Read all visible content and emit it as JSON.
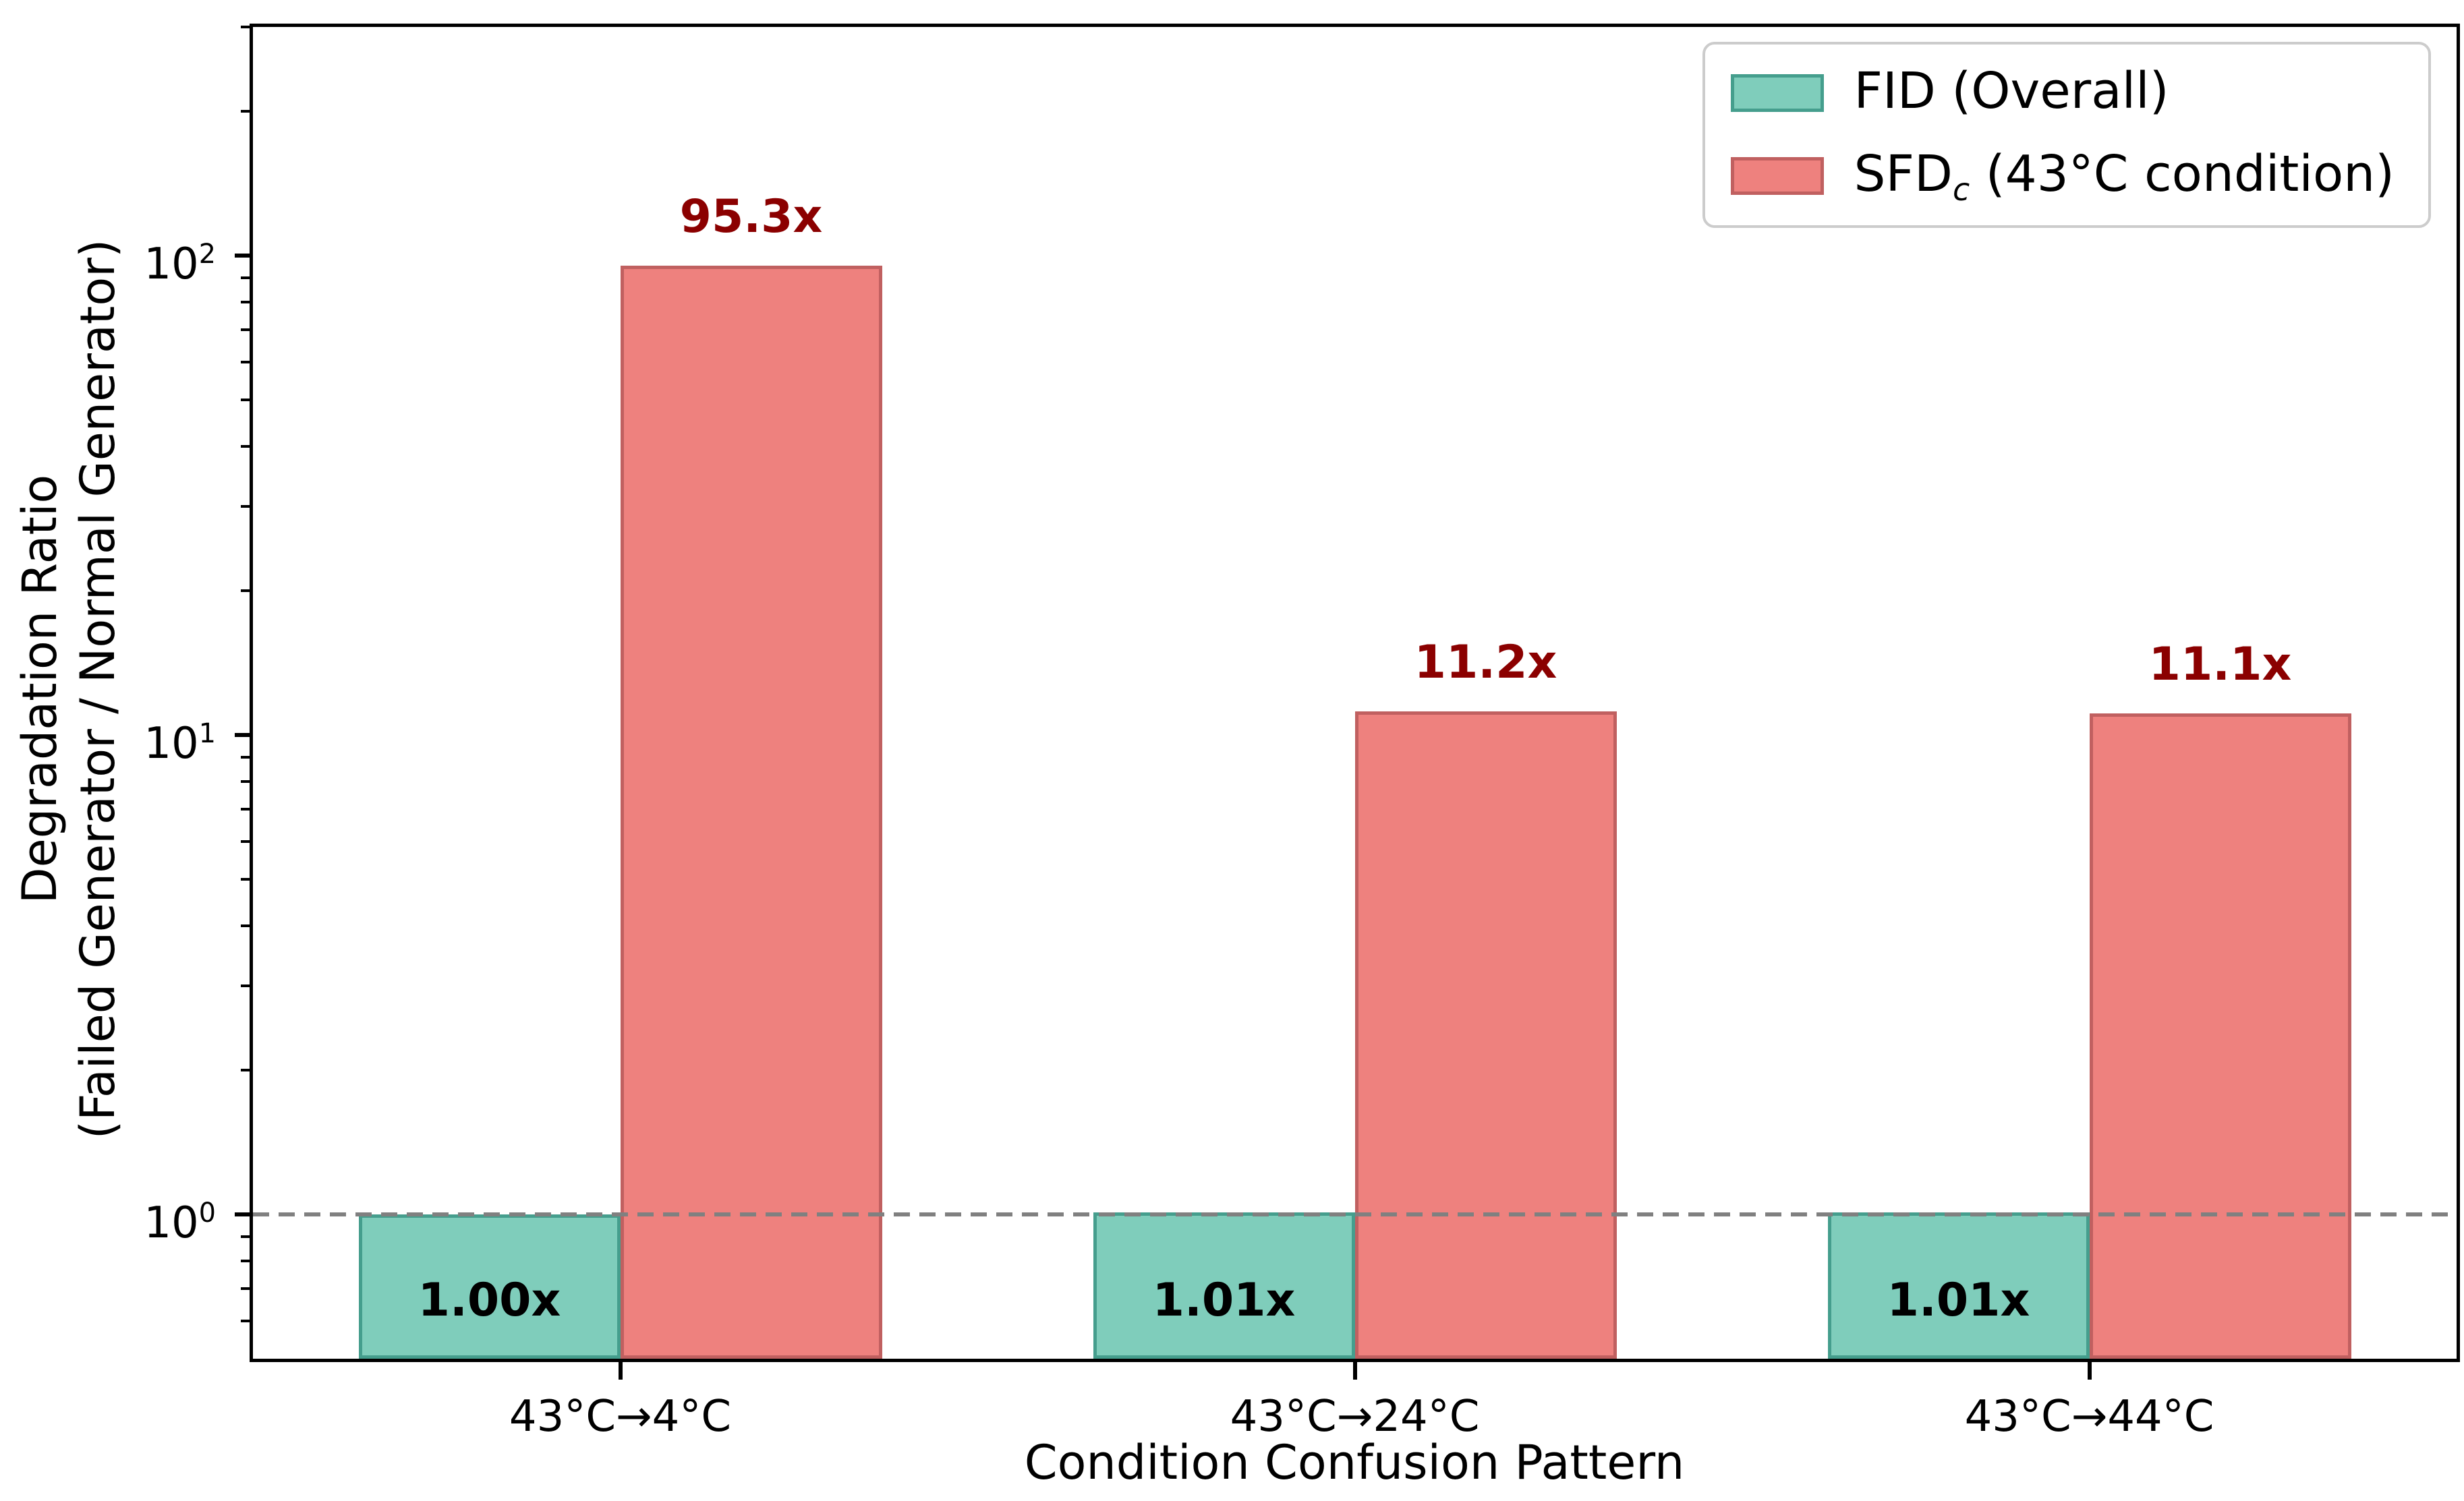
{
  "figure": {
    "background": "#ffffff",
    "axis_color": "#000000"
  },
  "chart_data": {
    "type": "bar",
    "title": "",
    "xlabel": "Condition Confusion Pattern",
    "ylabel_line1": "Degradation Ratio",
    "ylabel_line2": "(Failed Generator / Normal Generator)",
    "yscale": "log",
    "ylim": [
      0.5,
      300
    ],
    "grid": false,
    "categories": [
      "43°C→4°C",
      "43°C→24°C",
      "43°C→44°C"
    ],
    "series": [
      {
        "name": "FID (Overall)",
        "values": [
          1.0,
          1.01,
          1.01
        ],
        "labels": [
          "1.00x",
          "1.01x",
          "1.01x"
        ],
        "fill": "#7FCDBB",
        "edge": "#459E8D",
        "label_color": "#000000",
        "label_position": "inside-bottom"
      },
      {
        "name": "SFDc (43°C condition)",
        "values": [
          95.3,
          11.2,
          11.1
        ],
        "labels": [
          "95.3x",
          "11.2x",
          "11.1x"
        ],
        "fill": "#EE817E",
        "edge": "#C06060",
        "label_color": "#8B0000",
        "label_position": "above"
      }
    ],
    "yticks": [
      {
        "base": "10",
        "exp": "0",
        "value": 1
      },
      {
        "base": "10",
        "exp": "1",
        "value": 10
      },
      {
        "base": "10",
        "exp": "2",
        "value": 100
      }
    ],
    "reference_line": {
      "value": 1,
      "color": "#808080",
      "style": "dashed"
    },
    "legend": {
      "position": "upper right",
      "items": [
        {
          "pre": "FID (Overall)",
          "sub": "",
          "post": ""
        },
        {
          "pre": "SFD",
          "sub": "c",
          "post": " (43°C condition)"
        }
      ]
    }
  }
}
